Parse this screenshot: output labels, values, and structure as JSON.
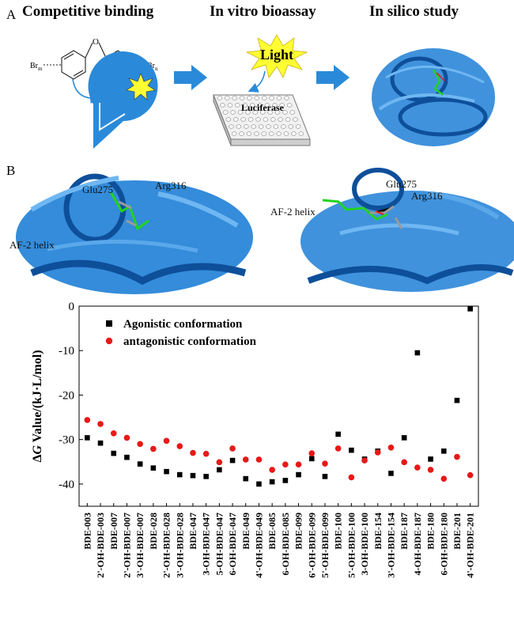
{
  "panel_a": {
    "letter": "A",
    "headings": [
      "Competitive binding",
      "In vitro bioassay",
      "In silico study"
    ],
    "br_left": "Br",
    "br_left_sub": "m",
    "br_right": "Br",
    "br_right_sub": "n",
    "oxygen": "O",
    "light_label": "Light",
    "plate_label": "Luciferase"
  },
  "panel_b": {
    "letter": "B",
    "left_labels": {
      "glu": "Glu275",
      "arg": "Arg316",
      "af2": "AF-2 helix"
    },
    "right_labels": {
      "glu": "Glu275",
      "arg": "Arg316",
      "af2": "AF-2 helix"
    }
  },
  "colors": {
    "protein": "#1e7fd6",
    "protein_dark": "#0e4f9a",
    "pie": "#2a8ad9",
    "arrow": "#2a8ad9",
    "star": "#ffff33",
    "series_agonist": "#000000",
    "series_antagonist": "#e81818",
    "ligand_green": "#22d322"
  },
  "chart_data": {
    "type": "scatter",
    "ylabel_prefix": "Δ",
    "ylabel_italic": "G",
    "ylabel_rest": " Value/(kJ·L/mol)",
    "ylim": [
      -45,
      0
    ],
    "yticks": [
      0,
      -10,
      -20,
      -30,
      -40
    ],
    "legend_position": "top-left",
    "categories": [
      "BDE-003",
      "2'-OH-BDE-003",
      "BDE-007",
      "2'-OH-BDE-007",
      "3'-OH-BDE-007",
      "BDE-028",
      "2'-OH-BDE-028",
      "3'-OH-BDE-028",
      "BDE-047",
      "3-OH-BDE-047",
      "5-OH-BDE-047",
      "6-OH-BDE-047",
      "BDE-049",
      "4'-OH-BDE-049",
      "BDE-085",
      "6-OH-BDE-085",
      "BDE-099",
      "6'-OH-BDE-099",
      "5'-OH-BDE-099",
      "BDE-100",
      "5'-OH-BDE-100",
      "3-OH-BDE-100",
      "BDE-154",
      "3'-OH-BDE-154",
      "BDE-187",
      "4-OH-BDE-187",
      "BDE-180",
      "6-OH-BDE-180",
      "BDE-201",
      "4'-OH-BDE-201"
    ],
    "series": [
      {
        "name": "Agonistic conformation",
        "marker": "square",
        "values": [
          -29.6,
          -30.8,
          -33.1,
          -34.0,
          -35.5,
          -36.4,
          -37.2,
          -37.9,
          -38.1,
          -38.3,
          -36.8,
          -34.7,
          -38.8,
          -40.0,
          -39.5,
          -39.2,
          -37.9,
          -34.3,
          -38.3,
          -28.8,
          -32.4,
          -34.4,
          -32.6,
          -37.6,
          -29.6,
          -10.5,
          -34.4,
          -32.6,
          -21.2,
          -0.6
        ]
      },
      {
        "name": "antagonistic conformation",
        "marker": "circle",
        "values": [
          -25.6,
          -26.5,
          -28.6,
          -29.6,
          -31.0,
          -32.1,
          -30.3,
          -31.5,
          -33.0,
          -33.2,
          -35.1,
          -32.0,
          -34.5,
          -34.5,
          -36.8,
          -35.6,
          -35.6,
          -33.1,
          -35.4,
          -32.0,
          -38.5,
          -34.7,
          -32.9,
          -31.8,
          -35.1,
          -36.3,
          -36.8,
          -38.8,
          -33.9,
          -38.0
        ]
      }
    ]
  }
}
